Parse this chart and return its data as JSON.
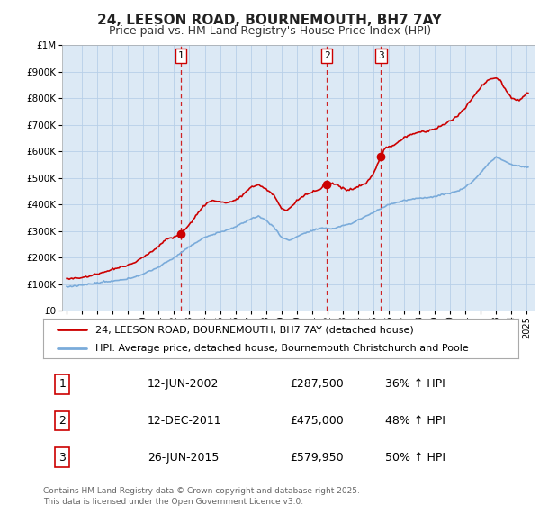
{
  "title": "24, LEESON ROAD, BOURNEMOUTH, BH7 7AY",
  "subtitle": "Price paid vs. HM Land Registry's House Price Index (HPI)",
  "hpi_label": "HPI: Average price, detached house, Bournemouth Christchurch and Poole",
  "property_label": "24, LEESON ROAD, BOURNEMOUTH, BH7 7AY (detached house)",
  "footer_line1": "Contains HM Land Registry data © Crown copyright and database right 2025.",
  "footer_line2": "This data is licensed under the Open Government Licence v3.0.",
  "transactions": [
    {
      "num": 1,
      "date": "12-JUN-2002",
      "price": "£287,500",
      "hpi": "36% ↑ HPI"
    },
    {
      "num": 2,
      "date": "12-DEC-2011",
      "price": "£475,000",
      "hpi": "48% ↑ HPI"
    },
    {
      "num": 3,
      "date": "26-JUN-2015",
      "price": "£579,950",
      "hpi": "50% ↑ HPI"
    }
  ],
  "transaction_dates_decimal": [
    2002.44,
    2011.95,
    2015.49
  ],
  "transaction_prices": [
    287500,
    475000,
    579950
  ],
  "property_color": "#cc0000",
  "hpi_color": "#7aabda",
  "chart_bg": "#dce9f5",
  "background_color": "#ffffff",
  "grid_color": "#b8cfe8",
  "ylim_max": 1000000,
  "xlim_start": 1994.7,
  "xlim_end": 2025.5,
  "title_fontsize": 11,
  "subtitle_fontsize": 9
}
